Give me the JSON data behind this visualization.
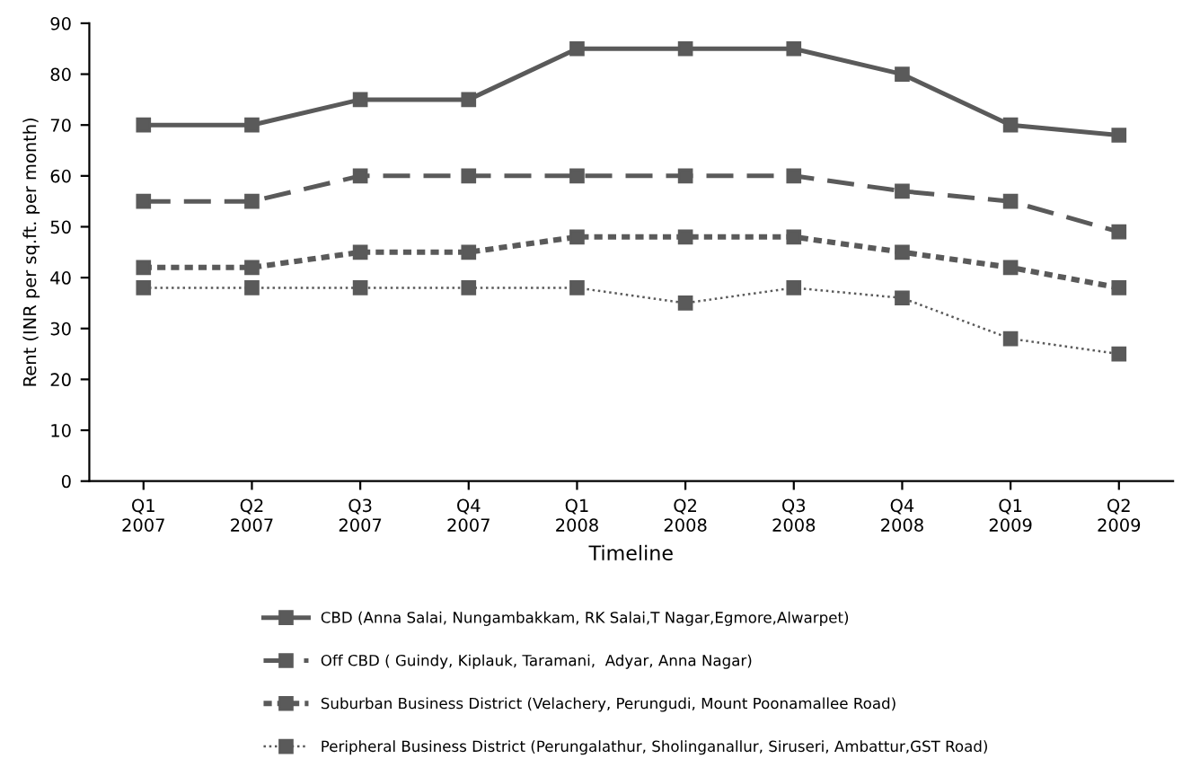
{
  "chart_data": {
    "type": "line",
    "xlabel": "Timeline",
    "ylabel": "Rent (INR per sq.ft. per month)",
    "categories": [
      "Q1\n2007",
      "Q2\n2007",
      "Q3\n2007",
      "Q4\n2007",
      "Q1\n2008",
      "Q2\n2008",
      "Q3\n2008",
      "Q4\n2008",
      "Q1\n2009",
      "Q2\n2009"
    ],
    "series": [
      {
        "name": "CBD (Anna Salai, Nungambakkam, RK Salai,T Nagar,Egmore,Alwarpet)",
        "color": "#5a5a5a",
        "line_style": "solid",
        "values": [
          70,
          70,
          75,
          75,
          85,
          85,
          85,
          80,
          70,
          68
        ]
      },
      {
        "name": "Off CBD ( Guindy, Kiplauk, Taramani,  Adyar, Anna Nagar)",
        "color": "#5a5a5a",
        "line_style": "dashed",
        "values": [
          55,
          55,
          60,
          60,
          60,
          60,
          60,
          57,
          55,
          49
        ]
      },
      {
        "name": "Suburban Business District (Velachery, Perungudi, Mount Poonamallee Road)",
        "color": "#5a5a5a",
        "line_style": "dotted",
        "values": [
          42,
          42,
          45,
          45,
          48,
          48,
          48,
          45,
          42,
          38
        ]
      },
      {
        "name": "Peripheral Business District (Perungalathur, Sholinganallur, Siruseri, Ambattur,GST Road)",
        "color": "#5a5a5a",
        "line_style": "dotted",
        "values": [
          38,
          38,
          38,
          38,
          38,
          35,
          38,
          36,
          28,
          25
        ]
      }
    ],
    "ylim": [
      0,
      90
    ],
    "yticks": [
      0,
      10,
      20,
      30,
      40,
      50,
      60,
      70,
      80,
      90
    ],
    "marker": "square",
    "grid": false,
    "legend": "bottom"
  }
}
